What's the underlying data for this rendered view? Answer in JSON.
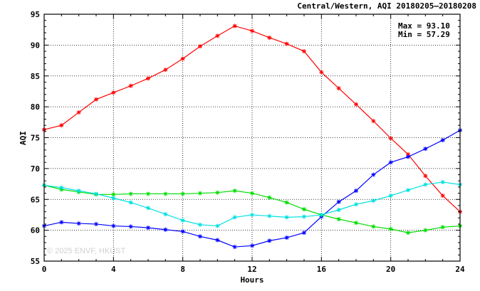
{
  "chart_data": {
    "type": "line",
    "title": "Central/Western, AQI 20180205–20180208",
    "stats": {
      "max_label": "Max = 93.10",
      "min_label": "Min = 57.29"
    },
    "xlabel": "Hours",
    "ylabel": "AQI",
    "xlim": [
      0,
      24
    ],
    "ylim": [
      55,
      95
    ],
    "x_ticks": [
      0,
      4,
      8,
      12,
      16,
      20,
      24
    ],
    "y_ticks": [
      55,
      60,
      65,
      70,
      75,
      80,
      85,
      90,
      95
    ],
    "grid": true,
    "watermark": "© 2025  ENVF, HKUST",
    "x": [
      0,
      1,
      2,
      3,
      4,
      5,
      6,
      7,
      8,
      9,
      10,
      11,
      12,
      13,
      14,
      15,
      16,
      17,
      18,
      19,
      20,
      21,
      22,
      23,
      24
    ],
    "series": [
      {
        "color": "#ff0000",
        "values": [
          76.3,
          77.0,
          79.1,
          81.2,
          82.3,
          83.4,
          84.6,
          86.0,
          87.8,
          89.8,
          91.5,
          93.1,
          92.3,
          91.2,
          90.2,
          89.0,
          85.6,
          83.0,
          80.4,
          77.7,
          74.9,
          72.3,
          68.8,
          65.6,
          63.0
        ]
      },
      {
        "color": "#0000ff",
        "values": [
          60.7,
          61.3,
          61.1,
          61.0,
          60.7,
          60.6,
          60.4,
          60.1,
          59.8,
          59.0,
          58.4,
          57.3,
          57.5,
          58.3,
          58.8,
          59.6,
          62.2,
          64.6,
          66.4,
          69.0,
          71.0,
          71.9,
          73.2,
          74.6,
          76.2
        ]
      },
      {
        "color": "#00dd00",
        "values": [
          67.3,
          66.6,
          66.2,
          65.8,
          65.8,
          65.9,
          65.9,
          65.9,
          65.9,
          66.0,
          66.1,
          66.4,
          66.0,
          65.3,
          64.5,
          63.4,
          62.5,
          61.8,
          61.2,
          60.6,
          60.2,
          59.6,
          60.0,
          60.5,
          60.7
        ]
      },
      {
        "color": "#00e0e0",
        "values": [
          67.3,
          66.9,
          66.4,
          65.9,
          65.2,
          64.5,
          63.6,
          62.6,
          61.6,
          60.9,
          60.7,
          62.1,
          62.5,
          62.3,
          62.1,
          62.2,
          62.5,
          63.3,
          64.2,
          64.8,
          65.6,
          66.5,
          67.4,
          67.8,
          67.4
        ]
      }
    ]
  }
}
